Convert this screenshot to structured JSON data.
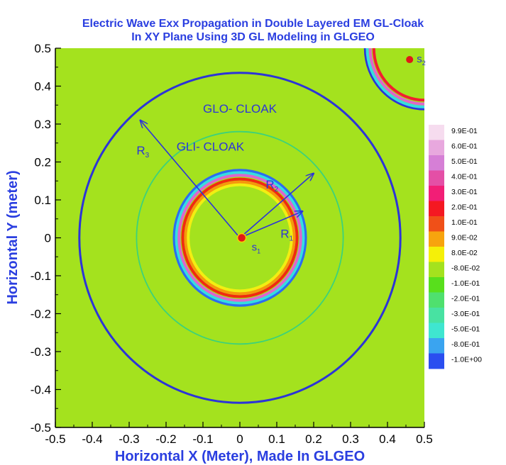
{
  "chart_data": {
    "type": "heatmap",
    "title": "Electric Wave Exx Propagation in Double Layered EM GL-Cloak",
    "subtitle": "In XY Plane Using 3D GL Modeling in GLGEO",
    "xlabel": "Horizontal X (Meter), Made In GLGEO",
    "ylabel": "Horizontal Y (meter)",
    "xlim": [
      -0.5,
      0.5
    ],
    "ylim": [
      -0.5,
      0.5
    ],
    "x_ticks": [
      "-0.5",
      "-0.4",
      "-0.3",
      "-0.2",
      "-0.1",
      "0",
      "0.1",
      "0.2",
      "0.3",
      "0.4",
      "0.5"
    ],
    "y_ticks": [
      "0.5",
      "0.4",
      "0.3",
      "0.2",
      "0.1",
      "0",
      "-0.1",
      "-0.2",
      "-0.3",
      "-0.4",
      "-0.5"
    ],
    "grid": false,
    "background_color": "#a4e21e",
    "legend": {
      "placement": "right",
      "entries": [
        {
          "label": "9.9E-01",
          "color": "#f6dcef"
        },
        {
          "label": "6.0E-01",
          "color": "#e8a8de"
        },
        {
          "label": "5.0E-01",
          "color": "#d67fd6"
        },
        {
          "label": "4.0E-01",
          "color": "#e44fa6"
        },
        {
          "label": "3.0E-01",
          "color": "#f21e76"
        },
        {
          "label": "2.0E-01",
          "color": "#f41822"
        },
        {
          "label": "1.0E-01",
          "color": "#f05018"
        },
        {
          "label": "9.0E-02",
          "color": "#f7a40e"
        },
        {
          "label": "8.0E-02",
          "color": "#f5f008"
        },
        {
          "label": "-8.0E-02",
          "color": "#a4e21e"
        },
        {
          "label": "-1.0E-01",
          "color": "#58df1c"
        },
        {
          "label": "-2.0E-01",
          "color": "#4fe06e"
        },
        {
          "label": "-3.0E-01",
          "color": "#48e2a2"
        },
        {
          "label": "-5.0E-01",
          "color": "#3fe6d0"
        },
        {
          "label": "-8.0E-01",
          "color": "#3aa4f0"
        },
        {
          "label": "-1.0E+00",
          "color": "#2a4ef0"
        }
      ]
    },
    "circles": [
      {
        "name": "GLO- CLOAK boundary",
        "cx": 0,
        "cy": 0,
        "r": 0.435,
        "color": "#2c34d8"
      },
      {
        "name": "GLI- CLOAK boundary",
        "cx": 0,
        "cy": 0,
        "r": 0.28,
        "color": "#3cd27a"
      },
      {
        "name": "inner cloak outer edge",
        "cx": 0,
        "cy": 0,
        "r": 0.178,
        "color": "#2c6cf0"
      },
      {
        "name": "inner cloak cyan band",
        "cx": 0,
        "cy": 0,
        "r": 0.172,
        "color": "#36dede"
      },
      {
        "name": "inner cloak magenta band",
        "cx": 0,
        "cy": 0,
        "r": 0.165,
        "color": "#de66cc"
      },
      {
        "name": "inner cloak red ring",
        "cx": 0,
        "cy": 0,
        "r": 0.155,
        "color": "#f22a10"
      },
      {
        "name": "inner cloak orange ring",
        "cx": 0,
        "cy": 0,
        "r": 0.147,
        "color": "#f6980c"
      },
      {
        "name": "inner cloak yellow ring",
        "cx": 0,
        "cy": 0,
        "r": 0.14,
        "color": "#f2ee12"
      },
      {
        "name": "s2 outer blue ring",
        "cx": 0.5,
        "cy": 0.5,
        "r": 0.16,
        "color": "#2c34d8"
      },
      {
        "name": "s2 cyan ring",
        "cx": 0.5,
        "cy": 0.5,
        "r": 0.155,
        "color": "#36dede"
      },
      {
        "name": "s2 magenta ring",
        "cx": 0.5,
        "cy": 0.5,
        "r": 0.147,
        "color": "#de66cc"
      },
      {
        "name": "s2 red ring",
        "cx": 0.5,
        "cy": 0.5,
        "r": 0.137,
        "color": "#f21e30"
      }
    ],
    "vectors": [
      {
        "label": "R",
        "sub": "1",
        "from": [
          0,
          0
        ],
        "to": [
          0.17,
          0.07
        ]
      },
      {
        "label": "R",
        "sub": "2",
        "from": [
          0,
          0
        ],
        "to": [
          0.2,
          0.17
        ]
      },
      {
        "label": "R",
        "sub": "3",
        "from": [
          0,
          0
        ],
        "to": [
          -0.27,
          0.31
        ]
      }
    ],
    "sources": [
      {
        "label": "s",
        "sub": "1",
        "x": 0.005,
        "y": 0.0
      },
      {
        "label": "s",
        "sub": "2",
        "x": 0.46,
        "y": 0.47
      }
    ],
    "annotations": [
      {
        "text": "GLO- CLOAK",
        "x": 0.0,
        "y": 0.33
      },
      {
        "text": "GLI- CLOAK",
        "x": -0.08,
        "y": 0.23
      }
    ]
  }
}
